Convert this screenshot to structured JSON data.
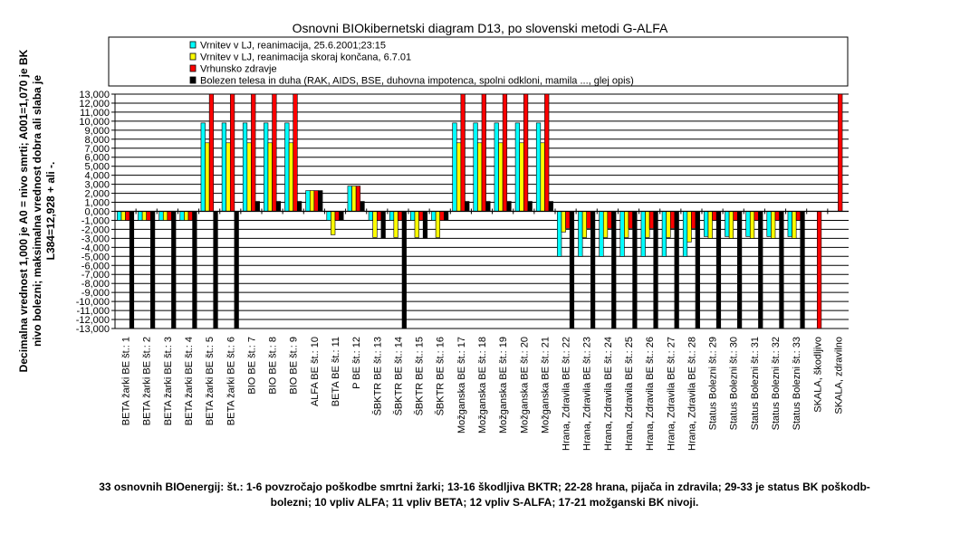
{
  "chart_data": {
    "type": "bar",
    "title": "Osnovni BIOkibernetski diagram D13, po slovenski metodi G-ALFA",
    "ylabel_lines": [
      "Decimalna vrednost 1,000 je A0 = nivo smrti; A001=1,070 je BK",
      "nivo bolezni; maksimalna vrednost dobra ali slaba je",
      "L384=12,928 + ali -."
    ],
    "ylim": [
      -13,
      13
    ],
    "yticks": [
      "-13,000",
      "-12,000",
      "-11,000",
      "-10,000",
      "-9,000",
      "-8,000",
      "-7,000",
      "-6,000",
      "-5,000",
      "-4,000",
      "-3,000",
      "-2,000",
      "-1,000",
      "0,000",
      "1,000",
      "2,000",
      "3,000",
      "4,000",
      "5,000",
      "6,000",
      "7,000",
      "8,000",
      "9,000",
      "10,000",
      "11,000",
      "12,000",
      "13,000"
    ],
    "grid": true,
    "legend_position": "top",
    "categories": [
      "BETA žarki BE št.: 1",
      "BETA žarki BE št.: 2",
      "BETA žarki BE št.: 3",
      "BETA žarki BE št.: 4",
      "BETA žarki BE št.: 5",
      "BETA žarki BE št.: 6",
      "BIO  BE št.: 7",
      "BIO  BE št.: 8",
      "BIO  BE št.: 9",
      "ALFA  BE št.: 10",
      "BETA  BE št.: 11",
      "P  BE št.: 12",
      "ŠBKTR BE št.: 13",
      "ŠBKTR BE št.: 14",
      "ŠBKTR BE št.: 15",
      "ŠBKTR BE št.: 16",
      "Možganska  BE št.: 17",
      "Možganska  BE št.: 18",
      "Možganska  BE št.: 19",
      "Možganska  BE št.: 20",
      "Možganska  BE št.: 21",
      "Hrana, Zdravila BE št.: 22",
      "Hrana, Zdravila BE št.: 23",
      "Hrana, Zdravila BE št.: 24",
      "Hrana, Zdravila BE št.: 25",
      "Hrana, Zdravila BE št.: 26",
      "Hrana, Zdravila BE št.: 27",
      "Hrana, Zdravila BE št.: 28",
      "Status Bolezni št.: 29",
      "Status Bolezni št.: 30",
      "Status Bolezni št.: 31",
      "Status Bolezni št.: 32",
      "Status Bolezni št.: 33",
      "SKALA, škodljivo",
      "SKALA, zdravilno"
    ],
    "series": [
      {
        "name": "Vrnitev v LJ, reanimacija, 25.6.2001;23:15",
        "color": "#00ffff",
        "values": [
          -1,
          -1,
          -1,
          -1,
          9.8,
          9.8,
          9.8,
          9.8,
          9.8,
          2.3,
          -1,
          2.8,
          -1,
          -1,
          -1,
          -1,
          9.8,
          9.8,
          9.8,
          9.8,
          9.8,
          -5,
          -5,
          -5,
          -5,
          -5,
          -5,
          -5,
          -2.8,
          -2.8,
          -2.8,
          -2.8,
          -2.8,
          0,
          0
        ]
      },
      {
        "name": "Vrnitev v LJ, reanimacija skoraj končana, 6.7.01",
        "color": "#ffff00",
        "values": [
          -1,
          -1,
          -1,
          -1,
          7.6,
          7.6,
          7.6,
          7.6,
          7.6,
          2.3,
          -2.6,
          2.8,
          -2.9,
          -2.9,
          -2.9,
          -2.9,
          7.6,
          7.6,
          7.6,
          7.6,
          7.6,
          -2.3,
          -2.9,
          -2.9,
          -2.9,
          -2.9,
          -2.9,
          -3.4,
          -3,
          -3,
          -3,
          -3,
          -3,
          0,
          0
        ]
      },
      {
        "name": "Vrhunsko zdravje",
        "color": "#ff0000",
        "values": [
          -1,
          -1,
          -1,
          -1,
          13,
          13,
          13,
          13,
          13,
          2.3,
          -1,
          2.8,
          -1,
          -1,
          -1,
          -1,
          13,
          13,
          13,
          13,
          13,
          -1.9,
          -1.9,
          -1.9,
          -1.9,
          -1.9,
          -1.9,
          -1.9,
          -1,
          -1,
          -1,
          -1,
          -1,
          -13,
          13
        ]
      },
      {
        "name": "Bolezen telesa in duha (RAK, AIDS, BSE, duhovna impotenca, spolni odkloni, mamila ..., glej opis)",
        "color": "#000000",
        "values": [
          -13,
          -13,
          -13,
          -13,
          -13,
          -13,
          1.1,
          1.1,
          1.1,
          2.3,
          -1,
          1.1,
          -3,
          -13,
          -3,
          -1,
          1.1,
          1.1,
          1.1,
          1.1,
          1.1,
          -13,
          -13,
          -13,
          -13,
          -13,
          -13,
          -13,
          -13,
          -13,
          -13,
          -13,
          -13,
          0,
          0
        ]
      }
    ],
    "footnote": "33 osnovnih BIOenergij: št.: 1-6 povzročajo poškodbe smrtni žarki; 13-16 škodljiva BKTR; 22-28 hrana, pijača in zdravila; 29-33 je status BK poškodb-bolezni; 10 vpliv ALFA; 11 vpliv BETA; 12 vpliv S-ALFA; 17-21 možganski BK nivoji."
  }
}
